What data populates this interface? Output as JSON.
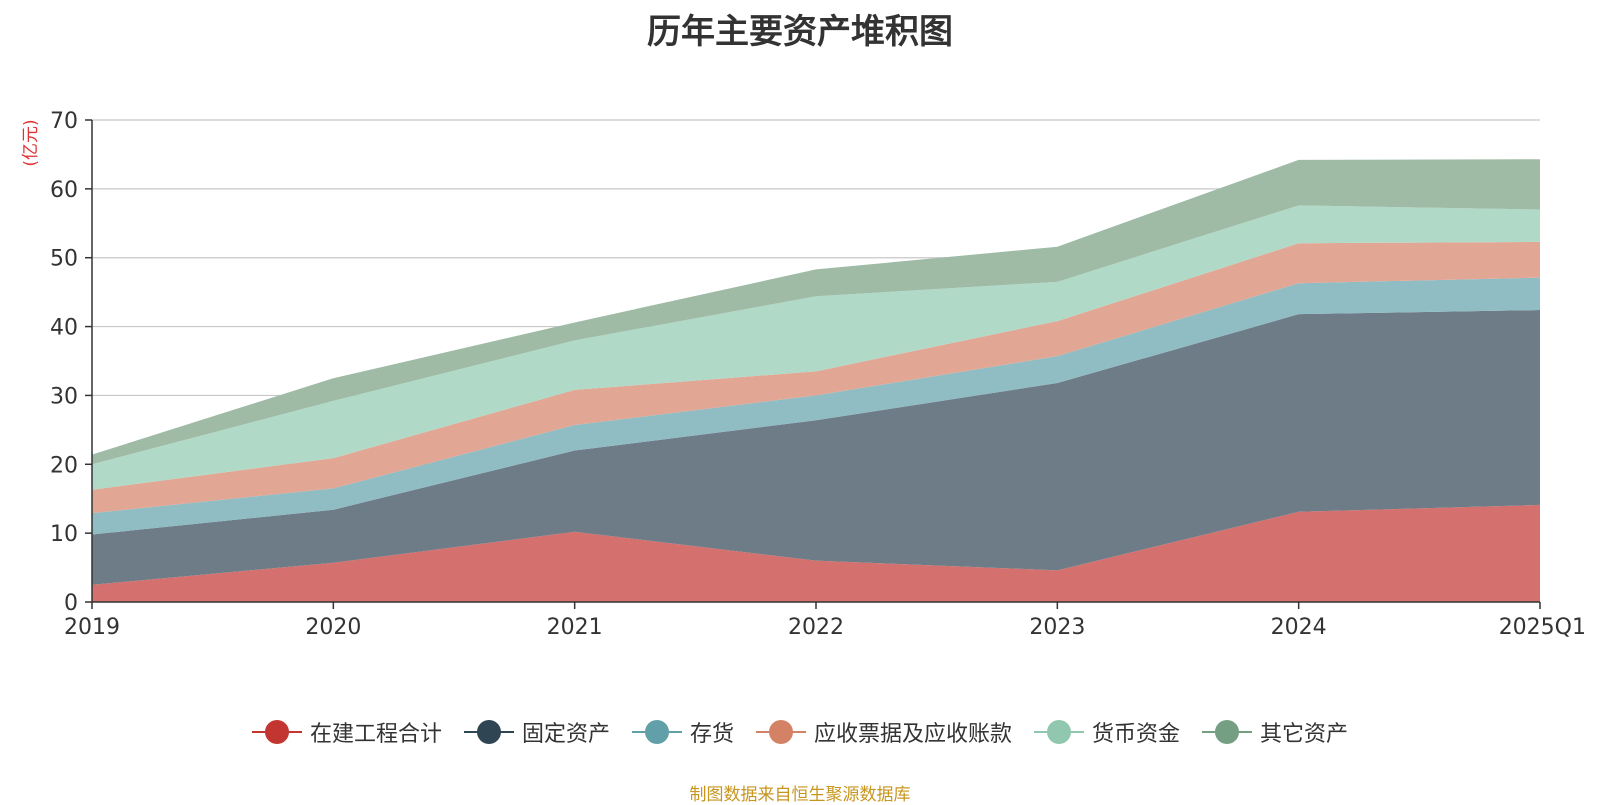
{
  "chart_data": {
    "type": "area",
    "stacked": true,
    "title": "历年主要资产堆积图",
    "ylabel": "(亿元)",
    "xlabel": "",
    "ylim": [
      0,
      70
    ],
    "yticks": [
      0,
      10,
      20,
      30,
      40,
      50,
      60,
      70
    ],
    "categories": [
      "2019",
      "2020",
      "2021",
      "2022",
      "2023",
      "2024",
      "2025Q1"
    ],
    "series": [
      {
        "name": "在建工程合计",
        "color": "#c23531",
        "fill": "#d4706e",
        "values": [
          2.5,
          5.7,
          10.2,
          6.0,
          4.6,
          13.1,
          14.1
        ]
      },
      {
        "name": "固定资产",
        "color": "#2f4554",
        "fill": "#6e7c87",
        "values": [
          7.3,
          7.7,
          11.8,
          20.4,
          27.2,
          28.7,
          28.3
        ]
      },
      {
        "name": "存货",
        "color": "#61a0a8",
        "fill": "#90bcc3",
        "values": [
          3.1,
          3.1,
          3.7,
          3.6,
          3.9,
          4.5,
          4.7
        ]
      },
      {
        "name": "应收票据及应收账款",
        "color": "#d48265",
        "fill": "#e1a794",
        "values": [
          3.4,
          4.4,
          5.1,
          3.5,
          5.1,
          5.8,
          5.2
        ]
      },
      {
        "name": "货币资金",
        "color": "#91c7ae",
        "fill": "#b1d9c8",
        "values": [
          3.7,
          8.3,
          7.2,
          10.9,
          5.7,
          5.5,
          4.7
        ]
      },
      {
        "name": "其它资产",
        "color": "#749f83",
        "fill": "#9fbba6",
        "values": [
          1.4,
          3.3,
          2.6,
          3.9,
          5.1,
          6.6,
          7.3
        ]
      }
    ],
    "legend_position": "bottom",
    "grid": true
  },
  "footer": {
    "source": "制图数据来自恒生聚源数据库"
  }
}
